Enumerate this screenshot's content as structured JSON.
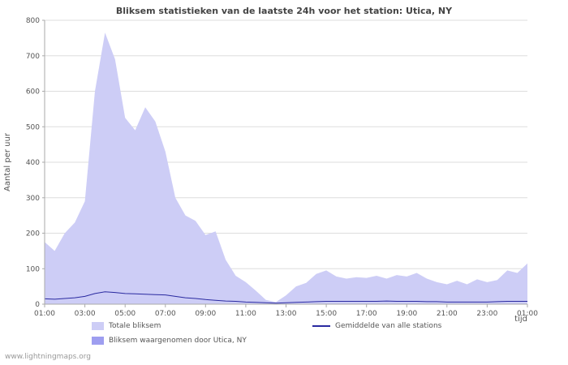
{
  "watermark": "www.lightningmaps.org",
  "colors": {
    "area_total": "#cdcdf6",
    "area_station": "#9e9ef0",
    "line_average": "#2a2aa0",
    "grid": "#dddddd",
    "axis": "#aaaaaa",
    "text": "#555555",
    "title": "#444444",
    "watermark": "#999999"
  },
  "chart_data": {
    "type": "area",
    "title": "Bliksem statistieken van de laatste 24h voor het station: Utica, NY",
    "xlabel": "tijd",
    "ylabel": "Aantal per uur",
    "xlim": [
      1,
      25
    ],
    "ylim": [
      0,
      800
    ],
    "grid": true,
    "legend_position": "bottom",
    "yticks": [
      0,
      100,
      200,
      300,
      400,
      500,
      600,
      700,
      800
    ],
    "xticks": {
      "hours": [
        1,
        3,
        5,
        7,
        9,
        11,
        13,
        15,
        17,
        19,
        21,
        23,
        25
      ],
      "labels": [
        "01:00",
        "03:00",
        "05:00",
        "07:00",
        "09:00",
        "11:00",
        "13:00",
        "15:00",
        "17:00",
        "19:00",
        "21:00",
        "23:00",
        "01:00"
      ]
    },
    "x_hours": [
      1,
      1.5,
      2,
      2.5,
      3,
      3.5,
      4,
      4.5,
      5,
      5.5,
      6,
      6.5,
      7,
      7.5,
      8,
      8.5,
      9,
      9.5,
      10,
      10.5,
      11,
      11.5,
      12,
      12.5,
      13,
      13.5,
      14,
      14.5,
      15,
      15.5,
      16,
      16.5,
      17,
      17.5,
      18,
      18.5,
      19,
      19.5,
      20,
      20.5,
      21,
      21.5,
      22,
      22.5,
      23,
      23.5,
      24,
      24.5,
      25
    ],
    "series": [
      {
        "name": "Totale bliksem",
        "type": "area",
        "color": "#cdcdf6",
        "values": [
          175,
          150,
          200,
          230,
          290,
          600,
          765,
          690,
          525,
          490,
          555,
          515,
          430,
          300,
          250,
          235,
          195,
          205,
          125,
          80,
          62,
          38,
          12,
          6,
          25,
          50,
          60,
          85,
          95,
          78,
          72,
          76,
          74,
          80,
          72,
          82,
          78,
          88,
          72,
          62,
          56,
          66,
          56,
          70,
          62,
          68,
          95,
          88,
          115
        ]
      },
      {
        "name": "Bliksem waargenomen door Utica, NY",
        "type": "area",
        "color": "#9e9ef0",
        "values": [
          0,
          0,
          0,
          0,
          0,
          0,
          0,
          0,
          0,
          0,
          0,
          0,
          0,
          0,
          0,
          0,
          0,
          0,
          0,
          0,
          0,
          0,
          0,
          0,
          0,
          0,
          0,
          0,
          0,
          0,
          0,
          0,
          0,
          0,
          0,
          0,
          0,
          0,
          0,
          0,
          0,
          0,
          0,
          0,
          0,
          0,
          0,
          0,
          0
        ]
      },
      {
        "name": "Gemiddelde van alle stations",
        "type": "line",
        "color": "#2a2aa0",
        "values": [
          15,
          14,
          16,
          18,
          22,
          30,
          35,
          33,
          30,
          29,
          28,
          27,
          26,
          22,
          18,
          16,
          13,
          11,
          9,
          8,
          6,
          5,
          4,
          3,
          4,
          5,
          6,
          7,
          8,
          8,
          8,
          8,
          8,
          8,
          9,
          8,
          8,
          8,
          7,
          7,
          6,
          6,
          6,
          6,
          6,
          7,
          8,
          8,
          8
        ]
      }
    ]
  }
}
